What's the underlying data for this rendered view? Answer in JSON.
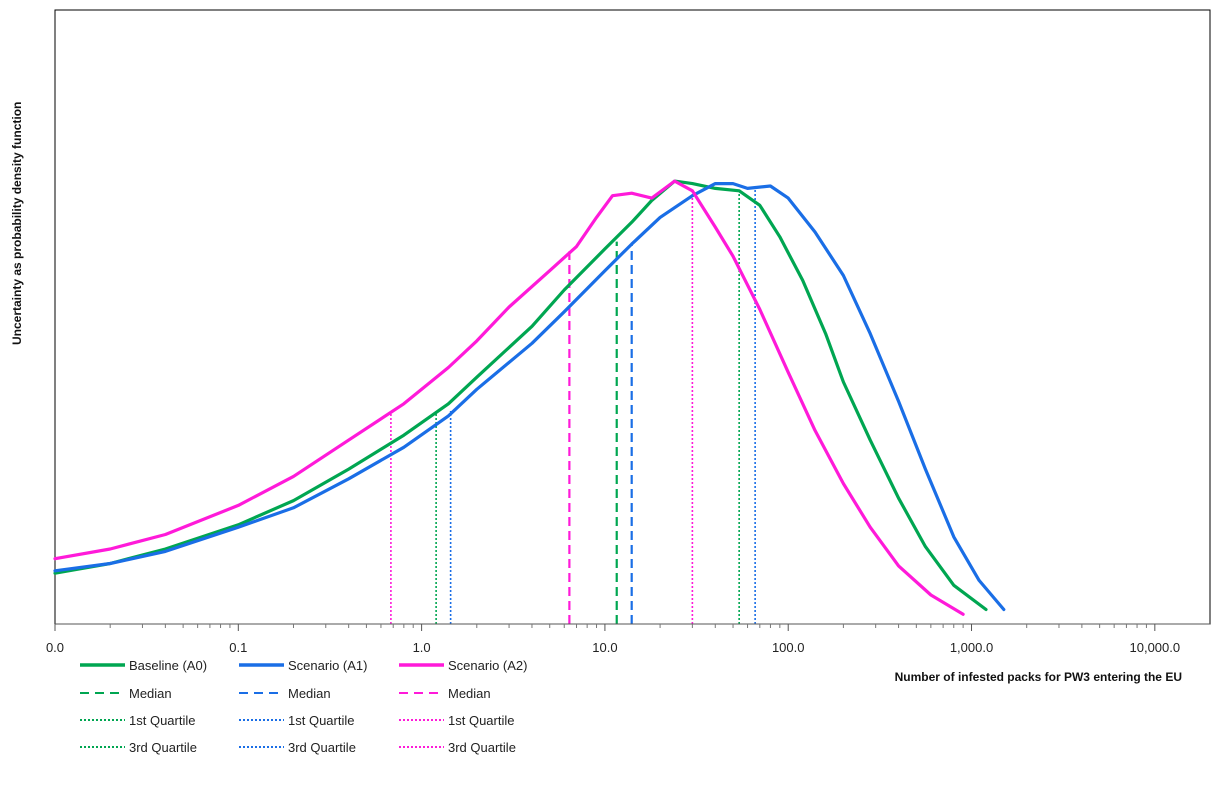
{
  "chart_data": {
    "type": "line",
    "xscale": "log",
    "xlim": [
      0.005,
      10000
    ],
    "x_tick_values": [
      0.005,
      0.05,
      0.5,
      5,
      50,
      500,
      5000
    ],
    "x_tick_labels": [
      "0.0",
      "0.1",
      "1.0",
      "10.0",
      "100.0",
      "1,000.0",
      "10,000.0"
    ],
    "xlabel": "Number of infested packs for PW3 entering the EU",
    "ylabel": "Uncertainty as probability density function",
    "ylim": [
      0,
      1
    ],
    "y_ticks_shown": false,
    "grid": false,
    "legend_position": "bottom-left",
    "series": [
      {
        "name": "Baseline (A0)",
        "color": "#00a651",
        "points": [
          [
            0.005,
            0.105
          ],
          [
            0.01,
            0.125
          ],
          [
            0.02,
            0.155
          ],
          [
            0.05,
            0.205
          ],
          [
            0.1,
            0.255
          ],
          [
            0.2,
            0.32
          ],
          [
            0.4,
            0.39
          ],
          [
            0.7,
            0.455
          ],
          [
            1.0,
            0.51
          ],
          [
            2.0,
            0.615
          ],
          [
            3.0,
            0.69
          ],
          [
            5.0,
            0.775
          ],
          [
            7.0,
            0.83
          ],
          [
            9.0,
            0.875
          ],
          [
            12.0,
            0.915
          ],
          [
            15.0,
            0.91
          ],
          [
            20.0,
            0.9
          ],
          [
            27.0,
            0.895
          ],
          [
            35.0,
            0.865
          ],
          [
            45.0,
            0.8
          ],
          [
            60.0,
            0.71
          ],
          [
            80.0,
            0.6
          ],
          [
            100.0,
            0.5
          ],
          [
            140.0,
            0.38
          ],
          [
            200.0,
            0.26
          ],
          [
            280.0,
            0.16
          ],
          [
            400.0,
            0.08
          ],
          [
            600.0,
            0.03
          ]
        ]
      },
      {
        "name": "Scenario (A1)",
        "color": "#1a6ee6",
        "points": [
          [
            0.005,
            0.11
          ],
          [
            0.01,
            0.125
          ],
          [
            0.02,
            0.15
          ],
          [
            0.05,
            0.2
          ],
          [
            0.1,
            0.24
          ],
          [
            0.2,
            0.3
          ],
          [
            0.4,
            0.365
          ],
          [
            0.7,
            0.43
          ],
          [
            1.0,
            0.485
          ],
          [
            2.0,
            0.58
          ],
          [
            3.0,
            0.645
          ],
          [
            5.0,
            0.73
          ],
          [
            7.0,
            0.785
          ],
          [
            10.0,
            0.84
          ],
          [
            15.0,
            0.885
          ],
          [
            20.0,
            0.91
          ],
          [
            25.0,
            0.91
          ],
          [
            30.0,
            0.9
          ],
          [
            40.0,
            0.905
          ],
          [
            50.0,
            0.88
          ],
          [
            70.0,
            0.81
          ],
          [
            100.0,
            0.72
          ],
          [
            140.0,
            0.6
          ],
          [
            200.0,
            0.46
          ],
          [
            280.0,
            0.32
          ],
          [
            400.0,
            0.18
          ],
          [
            550.0,
            0.09
          ],
          [
            750.0,
            0.03
          ]
        ]
      },
      {
        "name": "Scenario (A2)",
        "color": "#ff1ad9",
        "points": [
          [
            0.005,
            0.135
          ],
          [
            0.01,
            0.155
          ],
          [
            0.02,
            0.185
          ],
          [
            0.05,
            0.245
          ],
          [
            0.1,
            0.305
          ],
          [
            0.2,
            0.38
          ],
          [
            0.4,
            0.455
          ],
          [
            0.7,
            0.53
          ],
          [
            1.0,
            0.585
          ],
          [
            1.5,
            0.655
          ],
          [
            2.5,
            0.73
          ],
          [
            3.5,
            0.78
          ],
          [
            4.5,
            0.84
          ],
          [
            5.5,
            0.885
          ],
          [
            7.0,
            0.89
          ],
          [
            9.0,
            0.88
          ],
          [
            12.0,
            0.915
          ],
          [
            15.0,
            0.895
          ],
          [
            20.0,
            0.82
          ],
          [
            25.0,
            0.76
          ],
          [
            35.0,
            0.65
          ],
          [
            50.0,
            0.52
          ],
          [
            70.0,
            0.4
          ],
          [
            100.0,
            0.29
          ],
          [
            140.0,
            0.2
          ],
          [
            200.0,
            0.12
          ],
          [
            300.0,
            0.06
          ],
          [
            450.0,
            0.02
          ]
        ]
      }
    ],
    "reference_lines": [
      {
        "series": "Baseline (A0)",
        "type": "Median",
        "x": 5.8,
        "height": 0.79
      },
      {
        "series": "Baseline (A0)",
        "type": "1st Quartile",
        "x": 0.6,
        "height": 0.44
      },
      {
        "series": "Baseline (A0)",
        "type": "3rd Quartile",
        "x": 27,
        "height": 0.895
      },
      {
        "series": "Scenario (A1)",
        "type": "Median",
        "x": 7.0,
        "height": 0.785
      },
      {
        "series": "Scenario (A1)",
        "type": "1st Quartile",
        "x": 0.72,
        "height": 0.44
      },
      {
        "series": "Scenario (A1)",
        "type": "3rd Quartile",
        "x": 33,
        "height": 0.905
      },
      {
        "series": "Scenario (A2)",
        "type": "Median",
        "x": 3.2,
        "height": 0.77
      },
      {
        "series": "Scenario (A2)",
        "type": "1st Quartile",
        "x": 0.34,
        "height": 0.435
      },
      {
        "series": "Scenario (A2)",
        "type": "3rd Quartile",
        "x": 15,
        "height": 0.9
      }
    ],
    "legend": {
      "columns": [
        {
          "series": "Baseline (A0)",
          "entries": [
            "Baseline (A0)",
            "Median",
            "1st Quartile",
            "3rd Quartile"
          ]
        },
        {
          "series": "Scenario (A1)",
          "entries": [
            "Scenario (A1)",
            "Median",
            "1st Quartile",
            "3rd Quartile"
          ]
        },
        {
          "series": "Scenario (A2)",
          "entries": [
            "Scenario (A2)",
            "Median",
            "1st Quartile",
            "3rd Quartile"
          ]
        }
      ]
    }
  }
}
